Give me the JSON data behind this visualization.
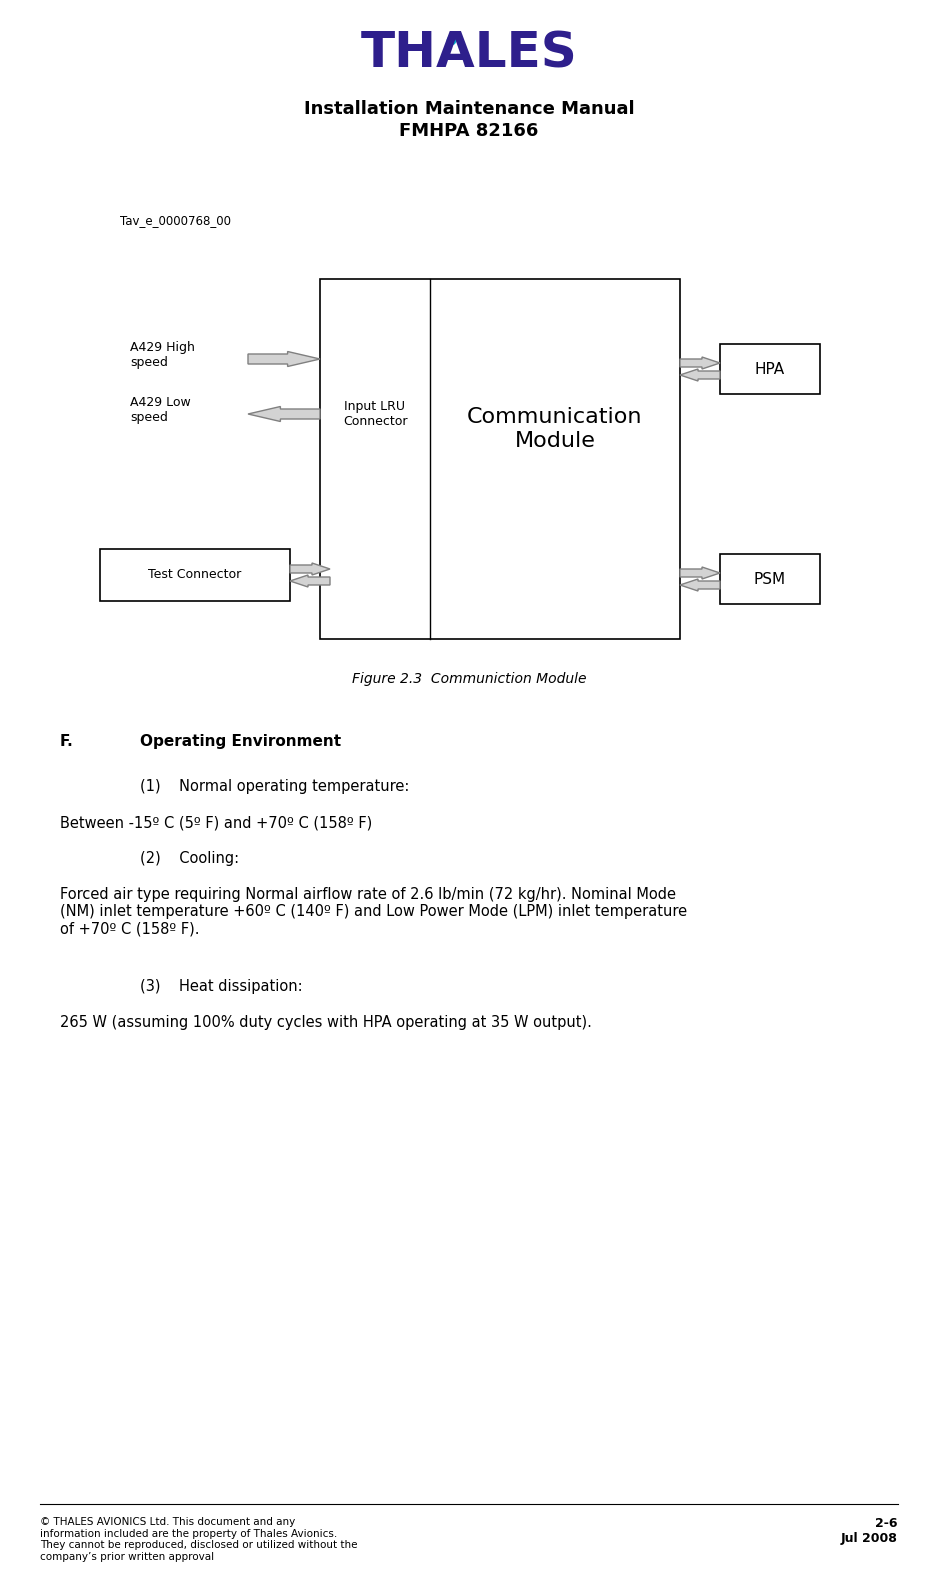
{
  "page_width": 9.38,
  "page_height": 15.89,
  "bg_color": "#ffffff",
  "header_line1": "Installation Maintenance Manual",
  "header_line2": "FMHPA 82166",
  "figure_label": "Tav_e_0000768_00",
  "figure_caption": "Figure 2.3  Communiction Module",
  "section_title": "F.    Operating Environment",
  "text_blocks": [
    {
      "indent": 1,
      "text": "(1)    Normal operating temperature:"
    },
    {
      "indent": 0,
      "text": "Between -15º C (5º F) and +70º C (158º F)"
    },
    {
      "indent": 1,
      "text": "(2)    Cooling:"
    },
    {
      "indent": 0,
      "text": "Forced air type requiring Normal airflow rate of 2.6 lb/min (72 kg/hr). Nominal Mode\n(NM) inlet temperature +60º C (140º F) and Low Power Mode (LPM) inlet temperature\nof +70º C (158º F)."
    },
    {
      "indent": 1,
      "text": "(3)    Heat dissipation:"
    },
    {
      "indent": 0,
      "text": "265 W (assuming 100% duty cycles with HPA operating at 35 W output)."
    }
  ],
  "footer_left": "© THALES AVIONICS Ltd. This document and any\ninformation included are the property of Thales Avionics.\nThey cannot be reproduced, disclosed or utilized without the\ncompany’s prior written approval",
  "footer_right": "2-6\nJul 2008",
  "thales_color": "#2e1f8c",
  "thales_drop_color": "#00b0c8"
}
